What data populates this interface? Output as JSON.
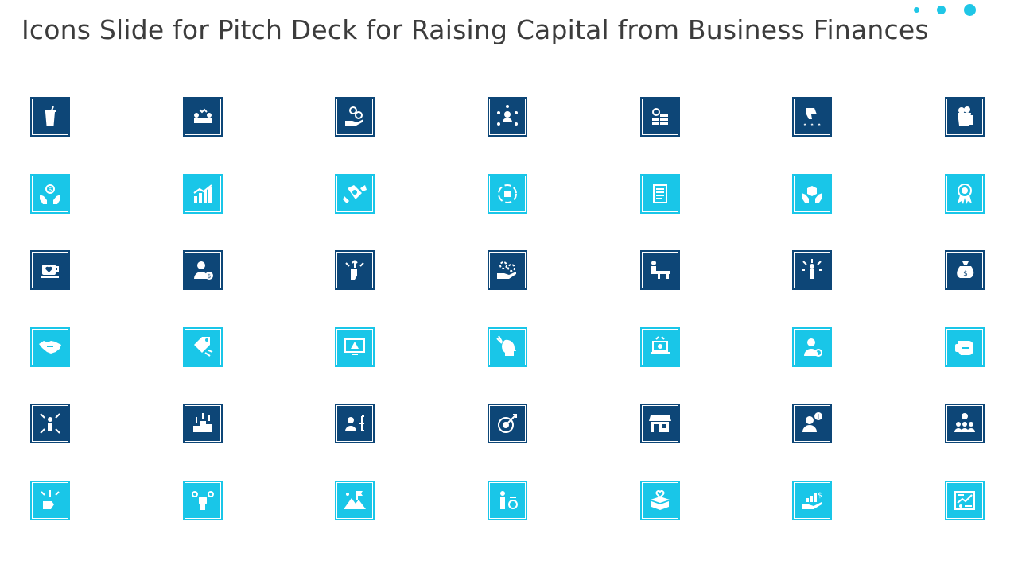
{
  "slide": {
    "title": "Icons Slide for Pitch Deck for Raising Capital from Business Finances"
  },
  "colors": {
    "dark_tile": "#0d4677",
    "light_tile": "#19c6e8",
    "accent": "#1fc6e6",
    "title": "#3c3c3c"
  },
  "icons": [
    {
      "name": "cup-icon",
      "style": "dark"
    },
    {
      "name": "strategy-meeting-icon",
      "style": "dark"
    },
    {
      "name": "hand-coins-icon",
      "style": "dark"
    },
    {
      "name": "user-network-icon",
      "style": "dark"
    },
    {
      "name": "coin-stack-icon",
      "style": "dark"
    },
    {
      "name": "thumbs-down-rating-icon",
      "style": "dark"
    },
    {
      "name": "popcorn-drink-icon",
      "style": "dark"
    },
    {
      "name": "hands-dollar-icon",
      "style": "light"
    },
    {
      "name": "growth-chart-icon",
      "style": "light"
    },
    {
      "name": "handshake-deal-icon",
      "style": "light"
    },
    {
      "name": "cycle-box-icon",
      "style": "light"
    },
    {
      "name": "document-icon",
      "style": "light"
    },
    {
      "name": "hands-cube-icon",
      "style": "light"
    },
    {
      "name": "award-badge-icon",
      "style": "light"
    },
    {
      "name": "coffee-cup-heart-icon",
      "style": "dark"
    },
    {
      "name": "businessman-dollar-icon",
      "style": "dark"
    },
    {
      "name": "hand-choice-arrows-icon",
      "style": "dark"
    },
    {
      "name": "hand-gears-icon",
      "style": "dark"
    },
    {
      "name": "presenter-desk-icon",
      "style": "dark"
    },
    {
      "name": "person-arrows-icon",
      "style": "dark"
    },
    {
      "name": "money-bag-icon",
      "style": "dark"
    },
    {
      "name": "handshake-icon",
      "style": "light"
    },
    {
      "name": "price-tag-icon",
      "style": "light"
    },
    {
      "name": "monitor-warning-icon",
      "style": "light"
    },
    {
      "name": "head-idea-icon",
      "style": "light"
    },
    {
      "name": "laptop-analytics-icon",
      "style": "light"
    },
    {
      "name": "user-refresh-icon",
      "style": "light"
    },
    {
      "name": "boxing-glove-icon",
      "style": "light"
    },
    {
      "name": "person-expand-icon",
      "style": "dark"
    },
    {
      "name": "podium-growth-icon",
      "style": "dark"
    },
    {
      "name": "user-hierarchy-icon",
      "style": "dark"
    },
    {
      "name": "target-arrow-icon",
      "style": "dark"
    },
    {
      "name": "storefront-icon",
      "style": "dark"
    },
    {
      "name": "support-info-icon",
      "style": "dark"
    },
    {
      "name": "team-dollar-icon",
      "style": "dark"
    },
    {
      "name": "hand-options-icon",
      "style": "light"
    },
    {
      "name": "raised-fist-coins-icon",
      "style": "light"
    },
    {
      "name": "mountain-flag-icon",
      "style": "light"
    },
    {
      "name": "person-coin-icon",
      "style": "light"
    },
    {
      "name": "box-heart-icon",
      "style": "light"
    },
    {
      "name": "hand-growth-dollar-icon",
      "style": "light"
    },
    {
      "name": "finance-dashboard-icon",
      "style": "light"
    }
  ]
}
